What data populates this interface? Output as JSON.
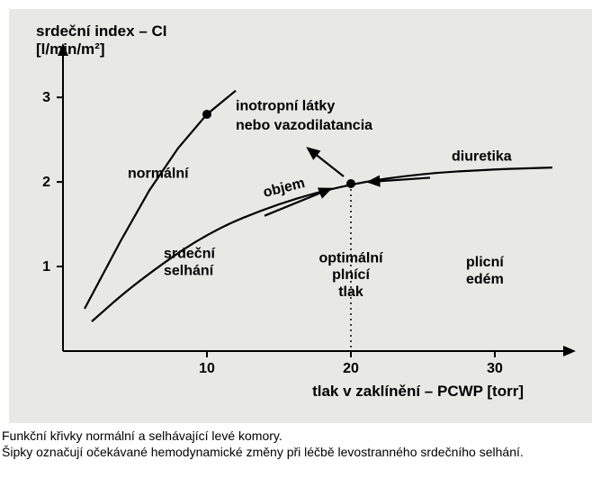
{
  "chart": {
    "type": "line",
    "background_color": "#e8e9e5",
    "y_title_line1": "srdeční index – CI",
    "y_title_line2": "[l/min/m²]",
    "x_title": "tlak v zaklínění – PCWP [torr]",
    "title_fontsize": 17,
    "label_fontsize": 16,
    "tick_fontsize": 16,
    "xlim": [
      0,
      35
    ],
    "ylim": [
      0,
      3.3
    ],
    "xticks": [
      10,
      20,
      30
    ],
    "yticks": [
      1,
      2,
      3
    ],
    "xtick_labels": [
      "10",
      "20",
      "30"
    ],
    "ytick_labels": [
      "1",
      "2",
      "3"
    ],
    "curve_color": "#000000",
    "curves": {
      "normal": [
        [
          1.5,
          0.5
        ],
        [
          4,
          1.3
        ],
        [
          6,
          1.9
        ],
        [
          8,
          2.4
        ],
        [
          10,
          2.8
        ],
        [
          12,
          3.08
        ]
      ],
      "failure": [
        [
          2,
          0.35
        ],
        [
          5,
          0.8
        ],
        [
          10,
          1.4
        ],
        [
          15,
          1.75
        ],
        [
          20,
          1.98
        ],
        [
          25,
          2.1
        ],
        [
          30,
          2.15
        ],
        [
          34,
          2.17
        ]
      ]
    },
    "points": {
      "p_normal": {
        "x": 10,
        "y": 2.8,
        "r": 5
      },
      "p_failure": {
        "x": 20,
        "y": 1.98,
        "r": 5
      }
    },
    "optimal_x": 20,
    "labels": {
      "y1": "srdeční index – CI",
      "y2": "[l/min/m²]",
      "normalni": "normální",
      "srdecni": "srdeční",
      "selhani": "selhání",
      "inotrop1": "inotropní látky",
      "inotrop2": "nebo vazodilatancia",
      "objem": "objem",
      "diuretika": "diuretika",
      "opt1": "optimální",
      "opt2": "plnící",
      "opt3": "tlak",
      "plicni1": "plicní",
      "plicni2": "edém",
      "xaxis": "tlak v zaklínění – PCWP [torr]"
    }
  },
  "caption": {
    "line1": "Funkční křivky normální a selhávající levé komory.",
    "line2": "Šipky označují očekávané hemodynamické změny při léčbě levostranného srdečního selhání."
  }
}
